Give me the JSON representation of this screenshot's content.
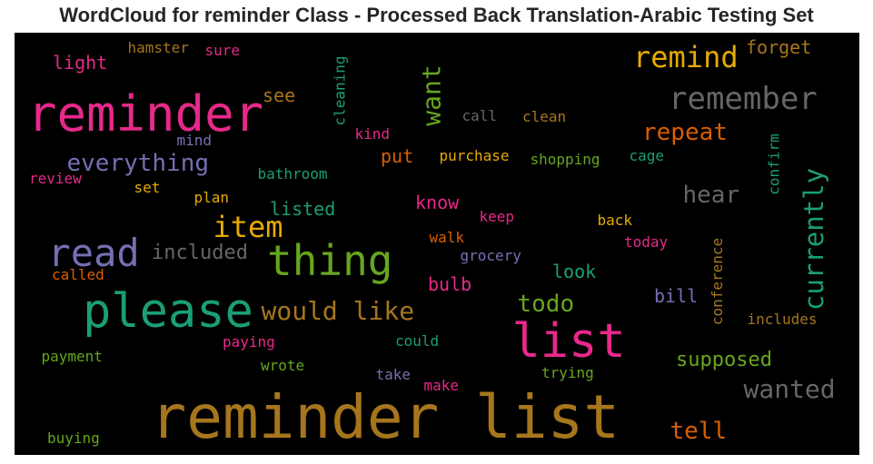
{
  "chart_data": {
    "type": "wordcloud",
    "title": "WordCloud for reminder Class - Processed Back Translation-Arabic Testing Set",
    "background": "#000000",
    "words": [
      {
        "text": "reminder list",
        "color": "#a6761d"
      },
      {
        "text": "reminder",
        "color": "#e7298a"
      },
      {
        "text": "please",
        "color": "#1b9e77"
      },
      {
        "text": "list",
        "color": "#e7298a"
      },
      {
        "text": "thing",
        "color": "#66a61e"
      },
      {
        "text": "read",
        "color": "#7570b3"
      },
      {
        "text": "remember",
        "color": "#666666"
      },
      {
        "text": "remind",
        "color": "#e6ab02"
      },
      {
        "text": "item",
        "color": "#e6ab02"
      },
      {
        "text": "currently",
        "color": "#1b9e77"
      },
      {
        "text": "want",
        "color": "#66a61e"
      },
      {
        "text": "would like",
        "color": "#a6761d"
      },
      {
        "text": "wanted",
        "color": "#666666"
      },
      {
        "text": "everything",
        "color": "#7570b3"
      },
      {
        "text": "repeat",
        "color": "#d95f02"
      },
      {
        "text": "hear",
        "color": "#666666"
      },
      {
        "text": "todo",
        "color": "#66a61e"
      },
      {
        "text": "included",
        "color": "#666666"
      },
      {
        "text": "supposed",
        "color": "#66a61e"
      },
      {
        "text": "tell",
        "color": "#d95f02"
      },
      {
        "text": "forget",
        "color": "#a6761d"
      },
      {
        "text": "listed",
        "color": "#1b9e77"
      },
      {
        "text": "know",
        "color": "#e7298a"
      },
      {
        "text": "light",
        "color": "#e7298a"
      },
      {
        "text": "see",
        "color": "#a6761d"
      },
      {
        "text": "put",
        "color": "#d95f02"
      },
      {
        "text": "look",
        "color": "#1b9e77"
      },
      {
        "text": "bulb",
        "color": "#e7298a"
      },
      {
        "text": "bill",
        "color": "#7570b3"
      },
      {
        "text": "cleaning",
        "color": "#1b9e77"
      },
      {
        "text": "confirm",
        "color": "#1b9e77"
      },
      {
        "text": "conference",
        "color": "#a6761d"
      },
      {
        "text": "hamster",
        "color": "#a6761d"
      },
      {
        "text": "sure",
        "color": "#e7298a"
      },
      {
        "text": "call",
        "color": "#666666"
      },
      {
        "text": "clean",
        "color": "#a6761d"
      },
      {
        "text": "kind",
        "color": "#e7298a"
      },
      {
        "text": "mind",
        "color": "#7570b3"
      },
      {
        "text": "purchase",
        "color": "#e6ab02"
      },
      {
        "text": "shopping",
        "color": "#66a61e"
      },
      {
        "text": "cage",
        "color": "#1b9e77"
      },
      {
        "text": "review",
        "color": "#e7298a"
      },
      {
        "text": "bathroom",
        "color": "#1b9e77"
      },
      {
        "text": "set",
        "color": "#e6ab02"
      },
      {
        "text": "plan",
        "color": "#e6ab02"
      },
      {
        "text": "keep",
        "color": "#e7298a"
      },
      {
        "text": "back",
        "color": "#e6ab02"
      },
      {
        "text": "walk",
        "color": "#d95f02"
      },
      {
        "text": "today",
        "color": "#e7298a"
      },
      {
        "text": "grocery",
        "color": "#7570b3"
      },
      {
        "text": "called",
        "color": "#d95f02"
      },
      {
        "text": "includes",
        "color": "#a6761d"
      },
      {
        "text": "paying",
        "color": "#e7298a"
      },
      {
        "text": "could",
        "color": "#1b9e77"
      },
      {
        "text": "payment",
        "color": "#66a61e"
      },
      {
        "text": "wrote",
        "color": "#66a61e"
      },
      {
        "text": "take",
        "color": "#7570b3"
      },
      {
        "text": "trying",
        "color": "#66a61e"
      },
      {
        "text": "make",
        "color": "#e7298a"
      },
      {
        "text": "buying",
        "color": "#66a61e"
      }
    ]
  }
}
